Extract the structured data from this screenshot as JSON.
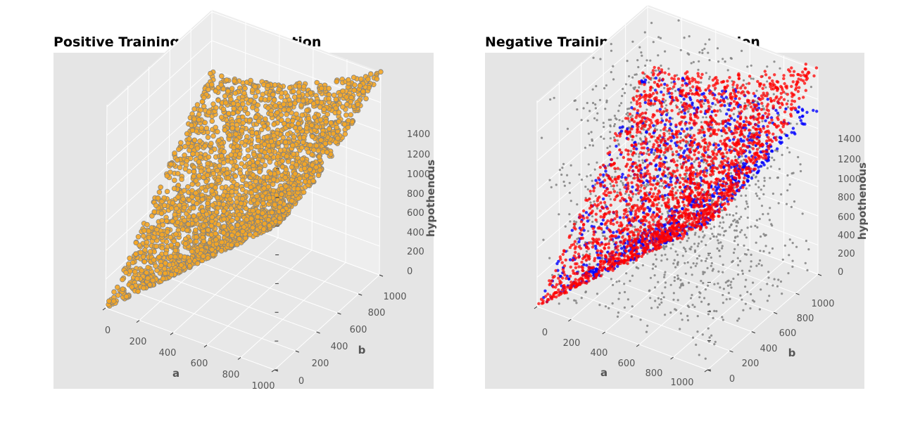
{
  "chart_data": [
    {
      "type": "scatter",
      "projection": "3d",
      "title": "Positive Training Data Visualization",
      "xlabel": "a",
      "ylabel": "b",
      "zlabel": "hypothenous",
      "xlim": [
        0,
        1000
      ],
      "ylim": [
        0,
        1000
      ],
      "zlim": [
        0,
        1414
      ],
      "xticks": [
        "0",
        "200",
        "400",
        "600",
        "800",
        "1000"
      ],
      "yticks": [
        "0",
        "200",
        "400",
        "600",
        "800",
        "1000"
      ],
      "zticks": [
        "0",
        "200",
        "400",
        "600",
        "800",
        "1000",
        "1200",
        "1400"
      ],
      "grid": true,
      "background": "#e5e5e5",
      "series": [
        {
          "marker_color": "#f5a623",
          "edge_color": "#808080",
          "relation": "z = sqrt(a^2 + b^2)",
          "a_range": [
            1,
            1000
          ],
          "b_range": [
            1,
            1000
          ]
        }
      ]
    },
    {
      "type": "scatter",
      "projection": "3d",
      "title": "Negative Training Data Visualization",
      "xlabel": "a",
      "ylabel": "b",
      "zlabel": "hypothenous",
      "xlim": [
        0,
        1000
      ],
      "ylim": [
        0,
        1000
      ],
      "zlim": [
        0,
        1414
      ],
      "xticks": [
        "0",
        "200",
        "400",
        "600",
        "800",
        "1000"
      ],
      "yticks": [
        "0",
        "200",
        "400",
        "600",
        "800",
        "1000"
      ],
      "zticks": [
        "0",
        "200",
        "400",
        "600",
        "800",
        "1000",
        "1200",
        "1400"
      ],
      "grid": true,
      "background": "#e5e5e5",
      "series": [
        {
          "marker_color": "#808080",
          "relation": "z random in [0, 1414]",
          "a_range": [
            1,
            1000
          ],
          "b_range": [
            1,
            1000
          ]
        },
        {
          "marker_color": "#0000ff",
          "relation": "z = a + b, capped near surface",
          "a_range": [
            1,
            1000
          ],
          "b_range": [
            1,
            1000
          ]
        },
        {
          "marker_color": "#ff0000",
          "relation": "z close to sqrt(a^2 + b^2)",
          "a_range": [
            1,
            1000
          ],
          "b_range": [
            1,
            1000
          ]
        }
      ]
    }
  ]
}
